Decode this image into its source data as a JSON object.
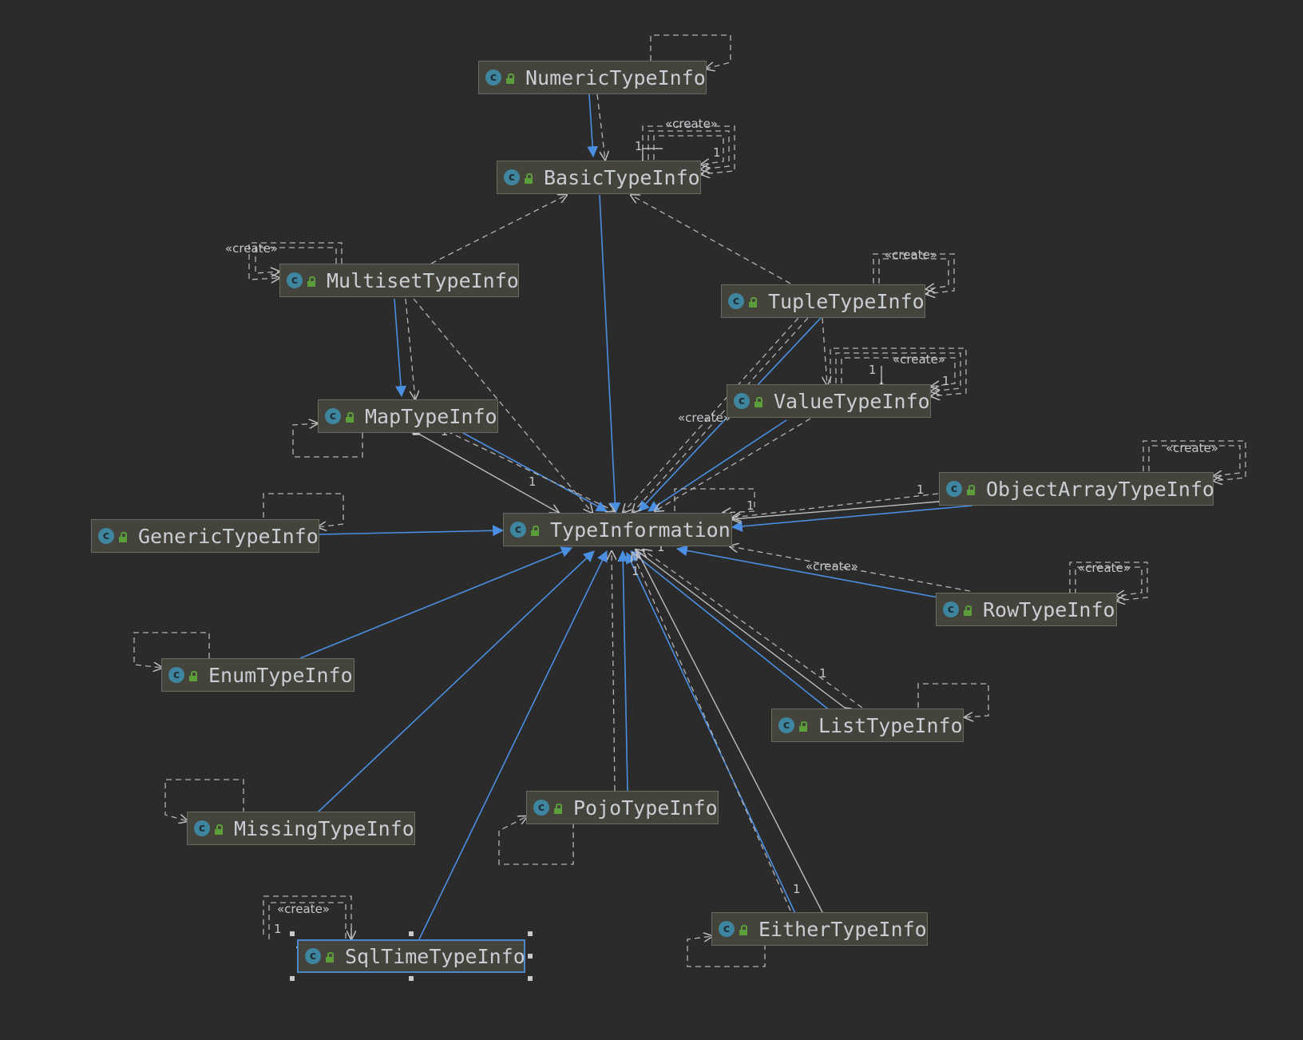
{
  "colors": {
    "background": "#2b2b2b",
    "node_fill": "#45443c",
    "node_border": "#6b6a60",
    "node_text": "#c9cdd4",
    "inheritance_edge": "#4b8fe2",
    "dependency_edge": "#b9b9b9",
    "selection": "#4a88c7"
  },
  "diagram": {
    "icons": {
      "class": "class-icon",
      "visibility": "public-lock-icon"
    },
    "class_icon_glyph": "c",
    "nodes": {
      "numeric": "NumericTypeInfo",
      "basic": "BasicTypeInfo",
      "multiset": "MultisetTypeInfo",
      "tuple": "TupleTypeInfo",
      "map": "MapTypeInfo",
      "value": "ValueTypeInfo",
      "objectarray": "ObjectArrayTypeInfo",
      "generic": "GenericTypeInfo",
      "typeinfo": "TypeInformation",
      "row": "RowTypeInfo",
      "enum": "EnumTypeInfo",
      "list": "ListTypeInfo",
      "pojo": "PojoTypeInfo",
      "missing": "MissingTypeInfo",
      "either": "EitherTypeInfo",
      "sqltime": "SqlTimeTypeInfo"
    },
    "labels": {
      "create": "«create»",
      "one": "1"
    },
    "selected_node": "SqlTimeTypeInfo"
  }
}
